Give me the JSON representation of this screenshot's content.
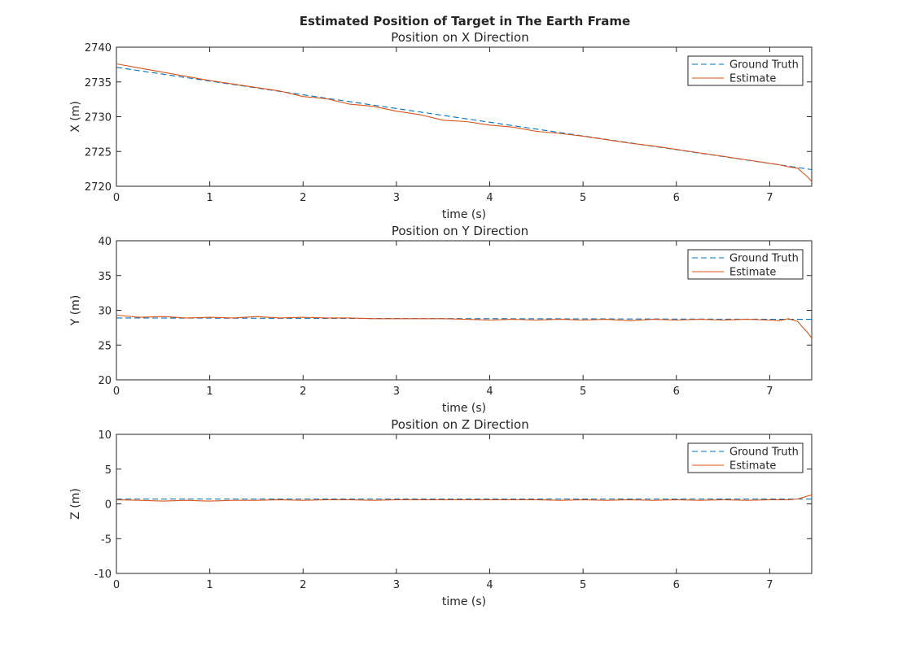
{
  "chart_data": {
    "type": "line",
    "title": "Estimated Position of Target in The Earth Frame",
    "subplots": [
      {
        "title": "Position on X Direction",
        "xlabel": "time (s)",
        "ylabel": "X (m)",
        "xlim": [
          0,
          7.45
        ],
        "ylim": [
          2720,
          2740
        ],
        "xticks": [
          0,
          1,
          2,
          3,
          4,
          5,
          6,
          7
        ],
        "yticks": [
          2720,
          2725,
          2730,
          2735,
          2740
        ],
        "legend": "top-right",
        "series": [
          {
            "name": "Ground Truth",
            "style": "dashed",
            "color": "#0072BD",
            "x": [
              0,
              7.45
            ],
            "y": [
              2737.1,
              2722.4
            ]
          },
          {
            "name": "Estimate",
            "style": "solid",
            "color": "#D95319",
            "x": [
              0,
              0.25,
              0.5,
              0.75,
              1.0,
              1.25,
              1.5,
              1.75,
              2.0,
              2.25,
              2.5,
              2.75,
              3.0,
              3.25,
              3.5,
              3.75,
              4.0,
              4.25,
              4.5,
              4.75,
              5.0,
              5.25,
              5.5,
              5.75,
              6.0,
              6.25,
              6.5,
              6.75,
              7.0,
              7.1,
              7.2,
              7.3,
              7.35,
              7.4,
              7.45
            ],
            "y": [
              2737.6,
              2737.0,
              2736.4,
              2735.8,
              2735.2,
              2734.7,
              2734.2,
              2733.7,
              2732.9,
              2732.6,
              2731.8,
              2731.5,
              2730.8,
              2730.3,
              2729.5,
              2729.3,
              2728.8,
              2728.5,
              2727.9,
              2727.6,
              2727.2,
              2726.7,
              2726.2,
              2725.8,
              2725.3,
              2724.8,
              2724.3,
              2723.8,
              2723.3,
              2723.1,
              2722.8,
              2722.6,
              2722.0,
              2721.4,
              2720.7
            ]
          }
        ]
      },
      {
        "title": "Position on Y Direction",
        "xlabel": "time (s)",
        "ylabel": "Y (m)",
        "xlim": [
          0,
          7.45
        ],
        "ylim": [
          20,
          40
        ],
        "xticks": [
          0,
          1,
          2,
          3,
          4,
          5,
          6,
          7
        ],
        "yticks": [
          20,
          25,
          30,
          35,
          40
        ],
        "legend": "top-right",
        "series": [
          {
            "name": "Ground Truth",
            "style": "dashed",
            "color": "#0072BD",
            "x": [
              0,
              7.45
            ],
            "y": [
              28.9,
              28.7
            ]
          },
          {
            "name": "Estimate",
            "style": "solid",
            "color": "#D95319",
            "x": [
              0,
              0.25,
              0.5,
              0.75,
              1.0,
              1.25,
              1.5,
              1.75,
              2.0,
              2.25,
              2.5,
              2.75,
              3.0,
              3.25,
              3.5,
              3.75,
              4.0,
              4.25,
              4.5,
              4.75,
              5.0,
              5.25,
              5.5,
              5.75,
              6.0,
              6.25,
              6.5,
              6.75,
              7.0,
              7.1,
              7.2,
              7.3,
              7.35,
              7.4,
              7.45
            ],
            "y": [
              29.3,
              29.0,
              29.1,
              28.9,
              29.0,
              28.9,
              29.1,
              28.9,
              29.0,
              28.9,
              28.9,
              28.8,
              28.8,
              28.8,
              28.8,
              28.7,
              28.6,
              28.7,
              28.6,
              28.7,
              28.6,
              28.7,
              28.5,
              28.7,
              28.6,
              28.7,
              28.6,
              28.7,
              28.6,
              28.5,
              28.8,
              28.4,
              27.6,
              26.9,
              26.0
            ]
          }
        ]
      },
      {
        "title": "Position on Z Direction",
        "xlabel": "time (s)",
        "ylabel": "Z (m)",
        "xlim": [
          0,
          7.45
        ],
        "ylim": [
          -10,
          10
        ],
        "xticks": [
          0,
          1,
          2,
          3,
          4,
          5,
          6,
          7
        ],
        "yticks": [
          -10,
          -5,
          0,
          5,
          10
        ],
        "legend": "top-right",
        "series": [
          {
            "name": "Ground Truth",
            "style": "dashed",
            "color": "#0072BD",
            "x": [
              0,
              7.45
            ],
            "y": [
              0.7,
              0.7
            ]
          },
          {
            "name": "Estimate",
            "style": "solid",
            "color": "#D95319",
            "x": [
              0,
              0.25,
              0.5,
              0.75,
              1.0,
              1.25,
              1.5,
              1.75,
              2.0,
              2.25,
              2.5,
              2.75,
              3.0,
              3.25,
              3.5,
              3.75,
              4.0,
              4.25,
              4.5,
              4.75,
              5.0,
              5.25,
              5.5,
              5.75,
              6.0,
              6.25,
              6.5,
              6.75,
              7.0,
              7.1,
              7.2,
              7.3,
              7.35,
              7.4,
              7.45
            ],
            "y": [
              0.6,
              0.5,
              0.4,
              0.5,
              0.4,
              0.5,
              0.5,
              0.6,
              0.5,
              0.6,
              0.6,
              0.5,
              0.6,
              0.6,
              0.6,
              0.6,
              0.6,
              0.6,
              0.6,
              0.5,
              0.6,
              0.5,
              0.6,
              0.5,
              0.6,
              0.5,
              0.6,
              0.5,
              0.6,
              0.6,
              0.6,
              0.7,
              0.9,
              1.1,
              1.3
            ]
          }
        ]
      }
    ]
  }
}
